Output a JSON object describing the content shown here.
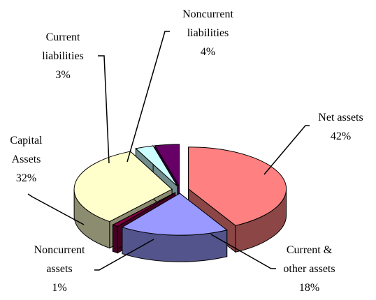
{
  "chart_data": {
    "type": "pie",
    "categories": [
      "Net assets",
      "Current & other assets",
      "Noncurrent assets",
      "Capital Assets",
      "Current liabilities",
      "Noncurrent liabilities"
    ],
    "values": [
      42,
      18,
      1,
      32,
      3,
      4
    ],
    "value_labels": [
      "42%",
      "18%",
      "1%",
      "32%",
      "3%",
      "4%"
    ],
    "colors": [
      "#FF8080",
      "#9999FF",
      "#800040",
      "#FFFFCC",
      "#CCFFFF",
      "#660066"
    ]
  }
}
